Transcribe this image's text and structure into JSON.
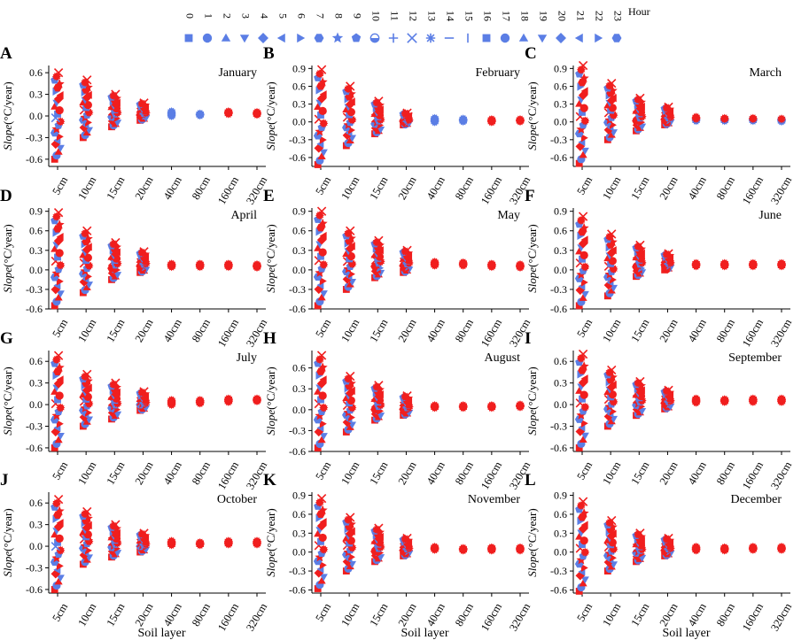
{
  "chart_data": {
    "type": "scatter",
    "figure_title": "",
    "xlabel": "Soil layer",
    "ylabel_prefix": "Slope",
    "ylabel_suffix": "(°C/year)",
    "categories": [
      "5cm",
      "10cm",
      "15cm",
      "20cm",
      "40cm",
      "80cm",
      "160cm",
      "320cm"
    ],
    "legend": {
      "title": "Hour",
      "hours": [
        "0",
        "1",
        "2",
        "3",
        "4",
        "5",
        "6",
        "7",
        "8",
        "9",
        "10",
        "11",
        "12",
        "13",
        "14",
        "15",
        "16",
        "17",
        "18",
        "19",
        "20",
        "21",
        "22",
        "23"
      ],
      "markers": [
        "square",
        "circle",
        "triangle-up",
        "triangle-down",
        "diamond",
        "triangle-left",
        "triangle-right",
        "hexagon",
        "star",
        "pentagon",
        "half-circle",
        "plus",
        "x",
        "asterisk",
        "dash",
        "vbar",
        "square",
        "circle",
        "triangle-up",
        "triangle-down",
        "diamond",
        "triangle-left",
        "triangle-right",
        "hexagon"
      ],
      "color": "#5b7ee5"
    },
    "colors": {
      "negative_trend": "#5b7ee5",
      "positive_trend": "#f01e1e"
    },
    "panels": [
      {
        "letter": "A",
        "month": "January",
        "ylim": [
          -0.7,
          0.7
        ],
        "ticks": [
          -0.6,
          -0.3,
          0.0,
          0.3,
          0.6
        ],
        "ranges": [
          [
            -0.6,
            0.6
          ],
          [
            -0.3,
            0.5
          ],
          [
            -0.15,
            0.3
          ],
          [
            -0.06,
            0.18
          ],
          [
            0.0,
            0.06
          ],
          [
            0.01,
            0.03
          ],
          [
            0.03,
            0.06
          ],
          [
            0.02,
            0.05
          ]
        ]
      },
      {
        "letter": "B",
        "month": "February",
        "ylim": [
          -0.75,
          0.95
        ],
        "ticks": [
          -0.6,
          -0.3,
          0.0,
          0.3,
          0.6,
          0.9
        ],
        "ranges": [
          [
            -0.72,
            0.88
          ],
          [
            -0.4,
            0.6
          ],
          [
            -0.2,
            0.35
          ],
          [
            -0.05,
            0.15
          ],
          [
            0.0,
            0.06
          ],
          [
            0.01,
            0.05
          ],
          [
            0.0,
            0.04
          ],
          [
            0.01,
            0.04
          ]
        ]
      },
      {
        "letter": "C",
        "month": "March",
        "ylim": [
          -0.75,
          0.95
        ],
        "ticks": [
          -0.6,
          -0.3,
          0.0,
          0.3,
          0.6,
          0.9
        ],
        "ranges": [
          [
            -0.7,
            0.95
          ],
          [
            -0.3,
            0.65
          ],
          [
            -0.15,
            0.4
          ],
          [
            -0.05,
            0.25
          ],
          [
            0.02,
            0.08
          ],
          [
            0.02,
            0.06
          ],
          [
            0.02,
            0.06
          ],
          [
            0.01,
            0.05
          ]
        ]
      },
      {
        "letter": "D",
        "month": "April",
        "ylim": [
          -0.6,
          0.95
        ],
        "ticks": [
          -0.6,
          -0.3,
          0.0,
          0.3,
          0.6,
          0.9
        ],
        "ranges": [
          [
            -0.55,
            0.88
          ],
          [
            -0.35,
            0.6
          ],
          [
            -0.15,
            0.42
          ],
          [
            -0.04,
            0.28
          ],
          [
            0.05,
            0.09
          ],
          [
            0.05,
            0.09
          ],
          [
            0.05,
            0.09
          ],
          [
            0.04,
            0.08
          ]
        ]
      },
      {
        "letter": "E",
        "month": "May",
        "ylim": [
          -0.6,
          0.95
        ],
        "ticks": [
          -0.6,
          -0.3,
          0.0,
          0.3,
          0.6,
          0.9
        ],
        "ranges": [
          [
            -0.55,
            0.9
          ],
          [
            -0.3,
            0.6
          ],
          [
            -0.12,
            0.45
          ],
          [
            -0.04,
            0.3
          ],
          [
            0.07,
            0.12
          ],
          [
            0.07,
            0.11
          ],
          [
            0.05,
            0.09
          ],
          [
            0.04,
            0.08
          ]
        ]
      },
      {
        "letter": "F",
        "month": "June",
        "ylim": [
          -0.6,
          0.95
        ],
        "ticks": [
          -0.6,
          -0.3,
          0.0,
          0.3,
          0.6,
          0.9
        ],
        "ranges": [
          [
            -0.55,
            0.82
          ],
          [
            -0.4,
            0.55
          ],
          [
            -0.1,
            0.38
          ],
          [
            0.0,
            0.25
          ],
          [
            0.06,
            0.1
          ],
          [
            0.06,
            0.1
          ],
          [
            0.06,
            0.1
          ],
          [
            0.06,
            0.1
          ]
        ]
      },
      {
        "letter": "G",
        "month": "July",
        "ylim": [
          -0.65,
          0.75
        ],
        "ticks": [
          -0.6,
          -0.3,
          0.0,
          0.3,
          0.6
        ],
        "ranges": [
          [
            -0.6,
            0.68
          ],
          [
            -0.3,
            0.42
          ],
          [
            -0.2,
            0.3
          ],
          [
            -0.08,
            0.18
          ],
          [
            0.0,
            0.06
          ],
          [
            0.02,
            0.06
          ],
          [
            0.04,
            0.08
          ],
          [
            0.05,
            0.08
          ]
        ]
      },
      {
        "letter": "H",
        "month": "August",
        "ylim": [
          -0.6,
          0.85
        ],
        "ticks": [
          -0.6,
          -0.3,
          0.0,
          0.3,
          0.6
        ],
        "ranges": [
          [
            -0.55,
            0.78
          ],
          [
            -0.32,
            0.48
          ],
          [
            -0.15,
            0.35
          ],
          [
            -0.08,
            0.2
          ],
          [
            0.03,
            0.06
          ],
          [
            0.03,
            0.06
          ],
          [
            0.03,
            0.06
          ],
          [
            0.04,
            0.07
          ]
        ]
      },
      {
        "letter": "I",
        "month": "September",
        "ylim": [
          -0.65,
          0.75
        ],
        "ticks": [
          -0.6,
          -0.3,
          0.0,
          0.3,
          0.6
        ],
        "ranges": [
          [
            -0.6,
            0.7
          ],
          [
            -0.3,
            0.48
          ],
          [
            -0.15,
            0.32
          ],
          [
            -0.06,
            0.2
          ],
          [
            0.03,
            0.08
          ],
          [
            0.04,
            0.07
          ],
          [
            0.04,
            0.08
          ],
          [
            0.04,
            0.08
          ]
        ]
      },
      {
        "letter": "J",
        "month": "October",
        "ylim": [
          -0.65,
          0.75
        ],
        "ticks": [
          -0.6,
          -0.3,
          0.0,
          0.3,
          0.6
        ],
        "ranges": [
          [
            -0.6,
            0.65
          ],
          [
            -0.25,
            0.48
          ],
          [
            -0.15,
            0.3
          ],
          [
            -0.08,
            0.18
          ],
          [
            0.02,
            0.07
          ],
          [
            0.02,
            0.05
          ],
          [
            0.03,
            0.07
          ],
          [
            0.03,
            0.07
          ]
        ]
      },
      {
        "letter": "K",
        "month": "November",
        "ylim": [
          -0.65,
          0.95
        ],
        "ticks": [
          -0.6,
          -0.3,
          0.0,
          0.3,
          0.6,
          0.9
        ],
        "ranges": [
          [
            -0.58,
            0.85
          ],
          [
            -0.3,
            0.55
          ],
          [
            -0.15,
            0.38
          ],
          [
            -0.06,
            0.22
          ],
          [
            0.04,
            0.08
          ],
          [
            0.03,
            0.06
          ],
          [
            0.03,
            0.07
          ],
          [
            0.03,
            0.07
          ]
        ]
      },
      {
        "letter": "L",
        "month": "December",
        "ylim": [
          -0.65,
          0.95
        ],
        "ticks": [
          -0.6,
          -0.3,
          0.0,
          0.3,
          0.6,
          0.9
        ],
        "ranges": [
          [
            -0.62,
            0.8
          ],
          [
            -0.3,
            0.5
          ],
          [
            -0.15,
            0.3
          ],
          [
            -0.06,
            0.22
          ],
          [
            0.03,
            0.08
          ],
          [
            0.03,
            0.07
          ],
          [
            0.04,
            0.08
          ],
          [
            0.04,
            0.08
          ]
        ]
      }
    ]
  }
}
